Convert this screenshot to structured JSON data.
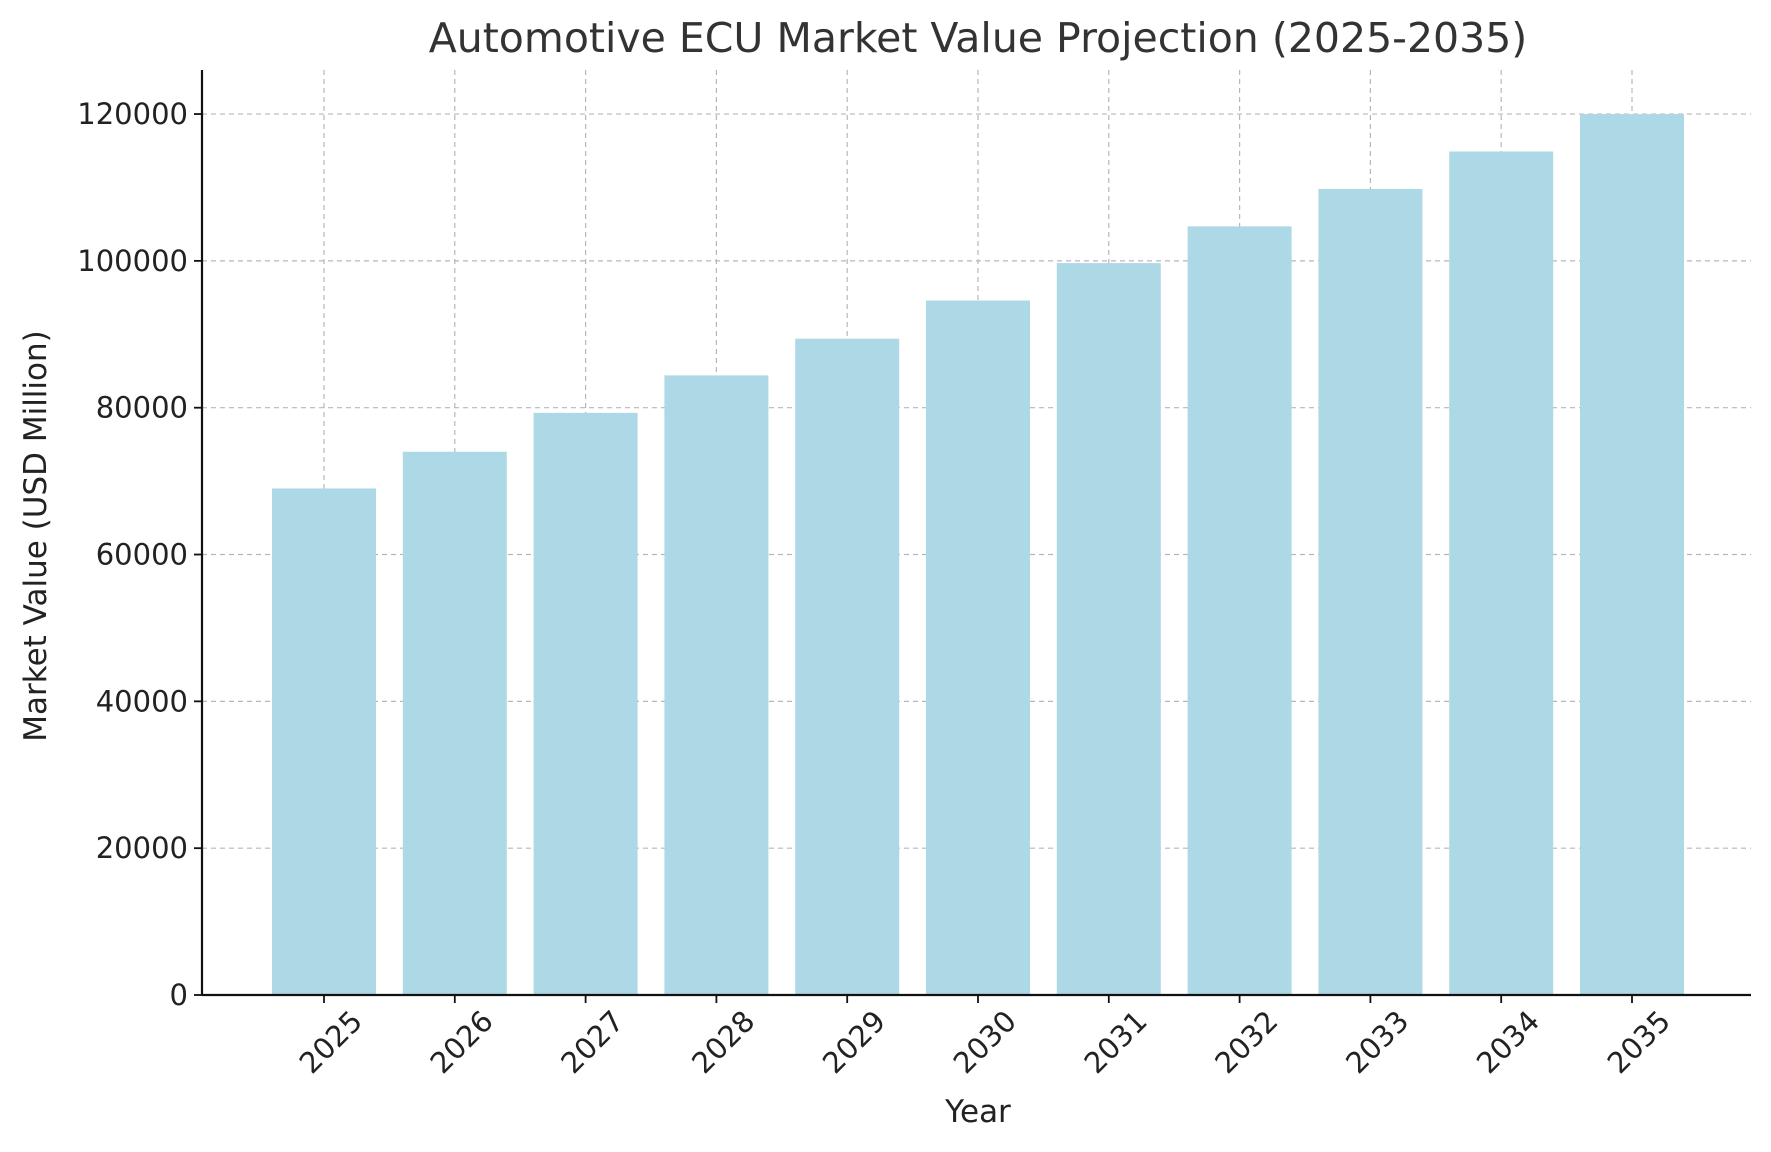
{
  "chart_data": {
    "type": "bar",
    "title": "Automotive ECU Market Value Projection (2025-2035)",
    "xlabel": "Year",
    "ylabel": "Market Value (USD Million)",
    "categories": [
      "2025",
      "2026",
      "2027",
      "2028",
      "2029",
      "2030",
      "2031",
      "2032",
      "2033",
      "2034",
      "2035"
    ],
    "values": [
      69000,
      74000,
      79300,
      84400,
      89400,
      94600,
      99700,
      104700,
      109800,
      114900,
      120000
    ],
    "ylim": [
      0,
      126000
    ],
    "yticks": [
      0,
      20000,
      40000,
      60000,
      80000,
      100000,
      120000
    ],
    "grid": true,
    "bar_color": "#add8e6",
    "xtick_rotation": "45 degrees"
  }
}
